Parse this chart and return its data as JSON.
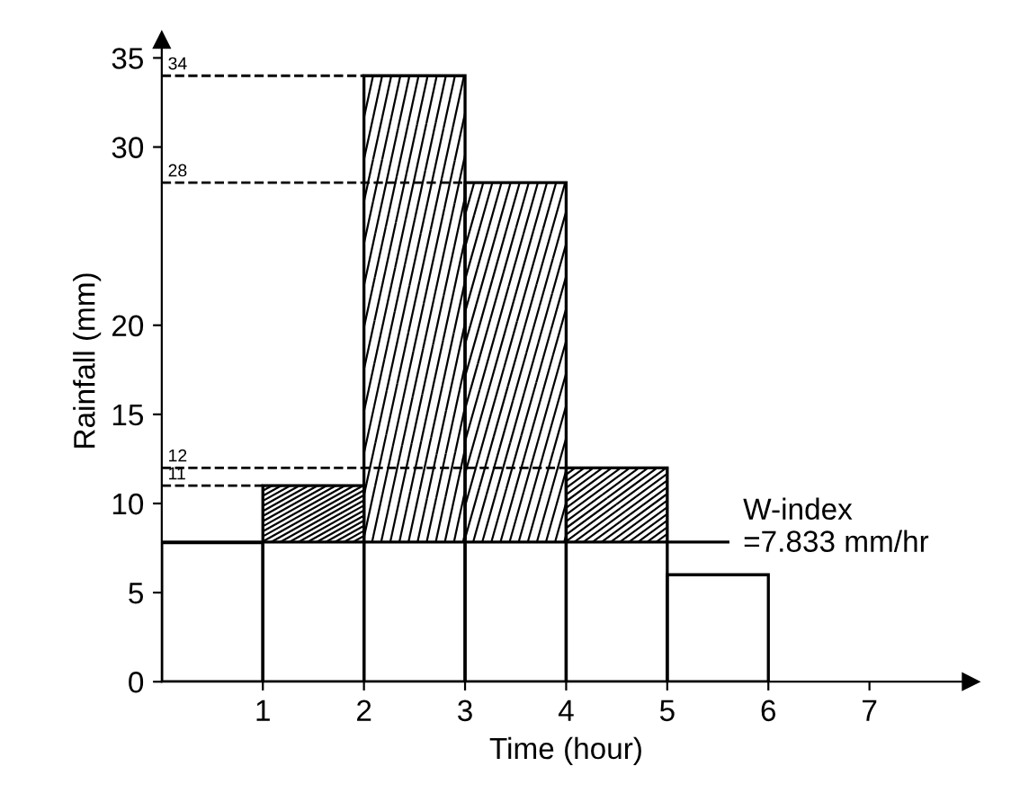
{
  "chart_data": {
    "type": "histogram",
    "bins": [
      0,
      1,
      2,
      3,
      4,
      5,
      6
    ],
    "values": [
      7.8,
      11,
      34,
      28,
      12,
      6
    ],
    "color": "#000000",
    "xlabel": "Time (hour)",
    "ylabel": "Rainfall (mm)",
    "xlim": [
      0,
      8
    ],
    "xticks": [
      1,
      2,
      3,
      4,
      5,
      6,
      7
    ],
    "ylim": [
      0,
      36
    ],
    "yticks": [
      0,
      5,
      10,
      15,
      20,
      30,
      35
    ],
    "ref_lines": [
      {
        "axis": "y",
        "value": 7.833,
        "label": "W-index\n=7.833 mm/hr",
        "line_style": "solid"
      },
      {
        "axis": "y",
        "value": 34,
        "label": "34",
        "line_style": "dashed"
      },
      {
        "axis": "y",
        "value": 28,
        "label": "28",
        "line_style": "dashed"
      },
      {
        "axis": "y",
        "value": 12,
        "label": "12",
        "line_style": "dashed"
      },
      {
        "axis": "y",
        "value": 11,
        "label": "11",
        "line_style": "dashed"
      }
    ],
    "grid": false,
    "legend": false
  }
}
